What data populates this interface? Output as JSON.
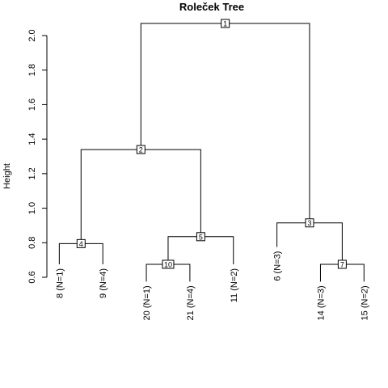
{
  "chart_data": {
    "type": "dendrogram",
    "title": "Roleček Tree",
    "ylabel": "Height",
    "ylim": [
      0.6,
      2.1
    ],
    "yticks": [
      "0.6",
      "0.8",
      "1.0",
      "1.2",
      "1.4",
      "1.6",
      "1.8",
      "2.0"
    ],
    "leaves": [
      {
        "label": "8 (N=1)",
        "order": 1,
        "height": 0.675
      },
      {
        "label": "9 (N=4)",
        "order": 2,
        "height": 0.675
      },
      {
        "label": "20 (N=1)",
        "order": 3,
        "height": 0.575
      },
      {
        "label": "21 (N=4)",
        "order": 4,
        "height": 0.575
      },
      {
        "label": "11 (N=2)",
        "order": 5,
        "height": 0.675
      },
      {
        "label": "6 (N=3)",
        "order": 6,
        "height": 0.775
      },
      {
        "label": "14 (N=3)",
        "order": 7,
        "height": 0.575
      },
      {
        "label": "15 (N=2)",
        "order": 8,
        "height": 0.575
      }
    ],
    "nodes": [
      {
        "id": "1",
        "height": 2.07,
        "left": "2",
        "right": "3"
      },
      {
        "id": "2",
        "height": 1.34,
        "left": "4",
        "right": "5"
      },
      {
        "id": "3",
        "height": 0.915,
        "left": "leaf:6",
        "right": "7"
      },
      {
        "id": "4",
        "height": 0.795,
        "left": "leaf:1",
        "right": "leaf:2"
      },
      {
        "id": "5",
        "height": 0.835,
        "left": "10",
        "right": "leaf:5"
      },
      {
        "id": "10",
        "height": 0.675,
        "left": "leaf:3",
        "right": "leaf:4"
      },
      {
        "id": "7",
        "height": 0.675,
        "left": "leaf:7",
        "right": "leaf:8"
      }
    ]
  }
}
